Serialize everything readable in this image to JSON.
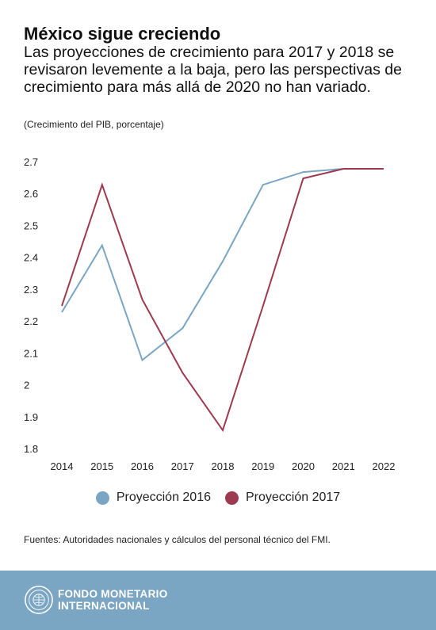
{
  "header": {
    "title": "México sigue creciendo",
    "subtitle": "Las proyecciones de crecimiento para 2017 y 2018 se revisaron levemente a la baja, pero las perspectivas de crecimiento para más allá de 2020 no han variado.",
    "unit_note": "(Crecimiento del PIB, porcentaje)"
  },
  "chart_data": {
    "type": "line",
    "title": "México sigue creciendo",
    "xlabel": "",
    "ylabel": "",
    "x": [
      "2014",
      "2015",
      "2016",
      "2017",
      "2018",
      "2019",
      "2020",
      "2021",
      "2022"
    ],
    "ylim": [
      1.8,
      2.7
    ],
    "yticks": [
      "2.7",
      "2.6",
      "2.5",
      "2.4",
      "2.3",
      "2.2",
      "2.1",
      "2",
      "1.9",
      "1.8"
    ],
    "grid": false,
    "legend_position": "bottom",
    "series": [
      {
        "name": "Proyección 2016",
        "color": "#7aa6c4",
        "values": [
          2.23,
          2.44,
          2.08,
          2.18,
          2.39,
          2.63,
          2.67,
          2.68,
          2.68
        ]
      },
      {
        "name": "Proyección 2017",
        "color": "#9e3a4f",
        "values": [
          2.25,
          2.63,
          2.27,
          2.04,
          1.86,
          2.25,
          2.65,
          2.68,
          2.68
        ]
      }
    ]
  },
  "source": "Fuentes: Autoridades nacionales y cálculos del personal técnico del FMI.",
  "footer": {
    "org_line1": "FONDO MONETARIO",
    "org_line2": "INTERNACIONAL",
    "seal_icon": "imf-seal-icon",
    "background": "#7aa6c4"
  }
}
